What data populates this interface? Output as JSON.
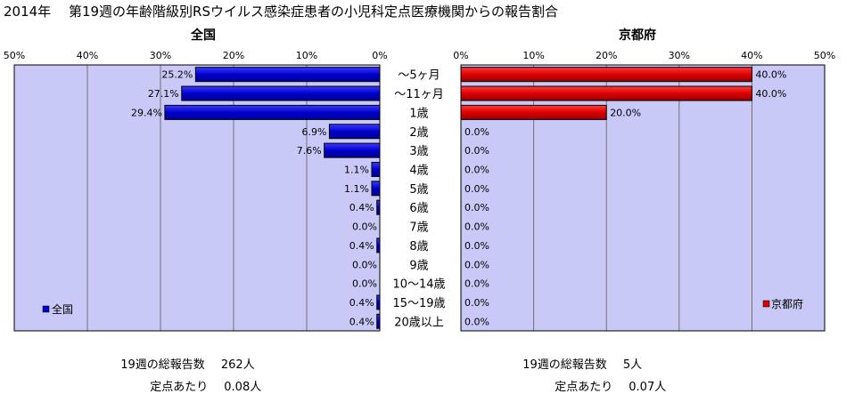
{
  "title": "2014年　 第19週の年齢階級別RSウイルス感染症患者の小児科定点医療機関からの報告割合",
  "categories": [
    "～5ヶ月",
    "～11ヶ月",
    "1歳",
    "2歳",
    "3歳",
    "4歳",
    "5歳",
    "6歳",
    "7歳",
    "8歳",
    "9歳",
    "10～14歳",
    "15～19歳",
    "20歳以上"
  ],
  "colors": {
    "plot_bg": "#c9c9f7",
    "left_bar": "#0000cc",
    "right_bar": "#dd0000",
    "grid": "#707070"
  },
  "chart_data": [
    {
      "type": "bar",
      "orientation": "horizontal",
      "direction": "right-to-left",
      "title": "全国",
      "series": [
        {
          "name": "全国",
          "values": [
            25.2,
            27.1,
            29.4,
            6.9,
            7.6,
            1.1,
            1.1,
            0.4,
            0.0,
            0.4,
            0.0,
            0.0,
            0.4,
            0.4
          ]
        }
      ],
      "xlim": [
        0,
        50
      ],
      "ticks": [
        0,
        10,
        20,
        30,
        40,
        50
      ],
      "tick_labels": [
        "0%",
        "10%",
        "20%",
        "30%",
        "40%",
        "50%"
      ],
      "data_labels": [
        "25.2%",
        "27.1%",
        "29.4%",
        "6.9%",
        "7.6%",
        "1.1%",
        "1.1%",
        "0.4%",
        "0.0%",
        "0.4%",
        "0.0%",
        "0.0%",
        "0.4%",
        "0.4%"
      ],
      "legend": "全国",
      "legend_position": "bottom-left",
      "grid": true
    },
    {
      "type": "bar",
      "orientation": "horizontal",
      "direction": "left-to-right",
      "title": "京都府",
      "series": [
        {
          "name": "京都府",
          "values": [
            40.0,
            40.0,
            20.0,
            0.0,
            0.0,
            0.0,
            0.0,
            0.0,
            0.0,
            0.0,
            0.0,
            0.0,
            0.0,
            0.0
          ]
        }
      ],
      "xlim": [
        0,
        50
      ],
      "ticks": [
        0,
        10,
        20,
        30,
        40,
        50
      ],
      "tick_labels": [
        "0%",
        "10%",
        "20%",
        "30%",
        "40%",
        "50%"
      ],
      "data_labels": [
        "40.0%",
        "40.0%",
        "20.0%",
        "0.0%",
        "0.0%",
        "0.0%",
        "0.0%",
        "0.0%",
        "0.0%",
        "0.0%",
        "0.0%",
        "0.0%",
        "0.0%",
        "0.0%"
      ],
      "legend": "京都府",
      "legend_position": "bottom-right",
      "grid": true
    }
  ],
  "stats": {
    "left": {
      "total_label": "19週の総報告数",
      "total_value": "262人",
      "per_label": "定点あたり",
      "per_value": "0.08人"
    },
    "right": {
      "total_label": "19週の総報告数",
      "total_value": "5人",
      "per_label": "定点あたり",
      "per_value": "0.07人"
    }
  }
}
